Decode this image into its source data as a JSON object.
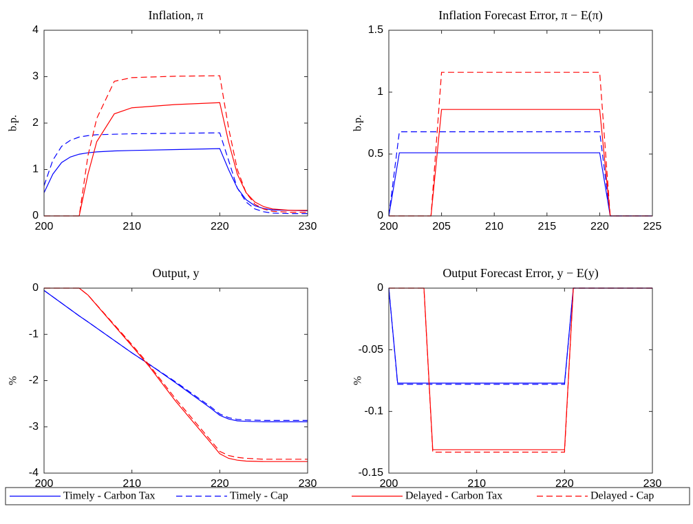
{
  "chart_data": [
    {
      "type": "line",
      "title": "Inflation, π",
      "ylabel": "b.p.",
      "x": [
        200,
        201,
        202,
        203,
        204,
        205,
        206,
        208,
        210,
        215,
        220,
        221,
        222,
        223,
        224,
        225,
        226,
        228,
        230
      ],
      "xlim": [
        200,
        230
      ],
      "xticks": [
        200,
        210,
        220,
        230
      ],
      "ylim": [
        0,
        4
      ],
      "yticks": [
        0,
        1,
        2,
        3,
        4
      ],
      "series": [
        {
          "name": "Timely - Carbon Tax",
          "color": "#0000ff",
          "linestyle": "solid",
          "values": [
            0.5,
            0.9,
            1.15,
            1.27,
            1.33,
            1.36,
            1.38,
            1.4,
            1.41,
            1.43,
            1.45,
            1.0,
            0.6,
            0.35,
            0.22,
            0.16,
            0.13,
            0.12,
            0.11
          ]
        },
        {
          "name": "Timely - Cap",
          "color": "#0000ff",
          "linestyle": "dashed",
          "values": [
            0.65,
            1.2,
            1.5,
            1.63,
            1.7,
            1.73,
            1.75,
            1.76,
            1.77,
            1.78,
            1.79,
            1.2,
            0.6,
            0.3,
            0.15,
            0.09,
            0.06,
            0.05,
            0.05
          ]
        },
        {
          "name": "Delayed - Carbon Tax",
          "color": "#ff0000",
          "linestyle": "solid",
          "values": [
            0,
            0,
            0,
            0,
            0,
            0.9,
            1.6,
            2.2,
            2.33,
            2.4,
            2.44,
            1.6,
            0.9,
            0.5,
            0.3,
            0.2,
            0.15,
            0.12,
            0.12
          ]
        },
        {
          "name": "Delayed - Cap",
          "color": "#ff0000",
          "linestyle": "dashed",
          "values": [
            0,
            0,
            0,
            0,
            0,
            1.3,
            2.1,
            2.9,
            2.98,
            3.01,
            3.02,
            1.9,
            1.0,
            0.5,
            0.25,
            0.15,
            0.1,
            0.08,
            0.08
          ]
        }
      ]
    },
    {
      "type": "line",
      "title": "Inflation Forecast Error, π − E(π)",
      "ylabel": "b.p.",
      "x": [
        200,
        201,
        204,
        205,
        220,
        221,
        225
      ],
      "xlim": [
        200,
        225
      ],
      "xticks": [
        200,
        205,
        210,
        215,
        220,
        225
      ],
      "ylim": [
        0,
        1.5
      ],
      "yticks": [
        0,
        0.5,
        1,
        1.5
      ],
      "series": [
        {
          "name": "Timely - Carbon Tax",
          "color": "#0000ff",
          "linestyle": "solid",
          "values": [
            0,
            0.51,
            0.51,
            0.51,
            0.51,
            0,
            0
          ]
        },
        {
          "name": "Timely - Cap",
          "color": "#0000ff",
          "linestyle": "dashed",
          "values": [
            0,
            0.68,
            0.68,
            0.68,
            0.68,
            0,
            0
          ]
        },
        {
          "name": "Delayed - Carbon Tax",
          "color": "#ff0000",
          "linestyle": "solid",
          "values": [
            0,
            0,
            0,
            0.86,
            0.86,
            0,
            0
          ]
        },
        {
          "name": "Delayed - Cap",
          "color": "#ff0000",
          "linestyle": "dashed",
          "values": [
            0,
            0,
            0,
            1.16,
            1.16,
            0,
            0
          ]
        }
      ]
    },
    {
      "type": "line",
      "title": "Output, y",
      "ylabel": "%",
      "x": [
        200,
        204,
        205,
        210,
        212,
        215,
        219,
        220,
        221,
        222,
        223,
        225,
        230
      ],
      "xlim": [
        200,
        230
      ],
      "xticks": [
        200,
        210,
        220,
        230
      ],
      "ylim": [
        -4,
        0
      ],
      "yticks": [
        -4,
        -3,
        -2,
        -1,
        0
      ],
      "series": [
        {
          "name": "Timely - Carbon Tax",
          "color": "#0000ff",
          "linestyle": "solid",
          "values": [
            -0.05,
            -0.6,
            -0.73,
            -1.4,
            -1.65,
            -2.05,
            -2.6,
            -2.75,
            -2.83,
            -2.87,
            -2.88,
            -2.89,
            -2.89
          ]
        },
        {
          "name": "Timely - Cap",
          "color": "#0000ff",
          "linestyle": "dashed",
          "values": [
            -0.05,
            -0.6,
            -0.73,
            -1.4,
            -1.65,
            -2.03,
            -2.57,
            -2.72,
            -2.8,
            -2.84,
            -2.85,
            -2.86,
            -2.86
          ]
        },
        {
          "name": "Delayed - Carbon Tax",
          "color": "#ff0000",
          "linestyle": "solid",
          "values": [
            0,
            0,
            -0.15,
            -1.25,
            -1.7,
            -2.45,
            -3.35,
            -3.58,
            -3.68,
            -3.72,
            -3.74,
            -3.75,
            -3.75
          ]
        },
        {
          "name": "Delayed - Cap",
          "color": "#ff0000",
          "linestyle": "dashed",
          "values": [
            0,
            0,
            -0.15,
            -1.22,
            -1.67,
            -2.4,
            -3.3,
            -3.53,
            -3.62,
            -3.66,
            -3.68,
            -3.7,
            -3.7
          ]
        }
      ]
    },
    {
      "type": "line",
      "title": "Output Forecast Error, y − E(y)",
      "ylabel": "%",
      "x": [
        200,
        201,
        204,
        205,
        220,
        221,
        230
      ],
      "xlim": [
        200,
        230
      ],
      "xticks": [
        200,
        210,
        220,
        230
      ],
      "ylim": [
        -0.15,
        0
      ],
      "yticks": [
        -0.15,
        -0.1,
        -0.05,
        0
      ],
      "series": [
        {
          "name": "Timely - Carbon Tax",
          "color": "#0000ff",
          "linestyle": "solid",
          "values": [
            0,
            -0.077,
            -0.077,
            -0.077,
            -0.077,
            0,
            0
          ]
        },
        {
          "name": "Timely - Cap",
          "color": "#0000ff",
          "linestyle": "dashed",
          "values": [
            0,
            -0.078,
            -0.078,
            -0.078,
            -0.078,
            0,
            0
          ]
        },
        {
          "name": "Delayed - Carbon Tax",
          "color": "#ff0000",
          "linestyle": "solid",
          "values": [
            0,
            0,
            0,
            -0.131,
            -0.131,
            0,
            0
          ]
        },
        {
          "name": "Delayed - Cap",
          "color": "#ff0000",
          "linestyle": "dashed",
          "values": [
            0,
            0,
            0,
            -0.133,
            -0.133,
            0,
            0
          ]
        }
      ]
    }
  ]
}
